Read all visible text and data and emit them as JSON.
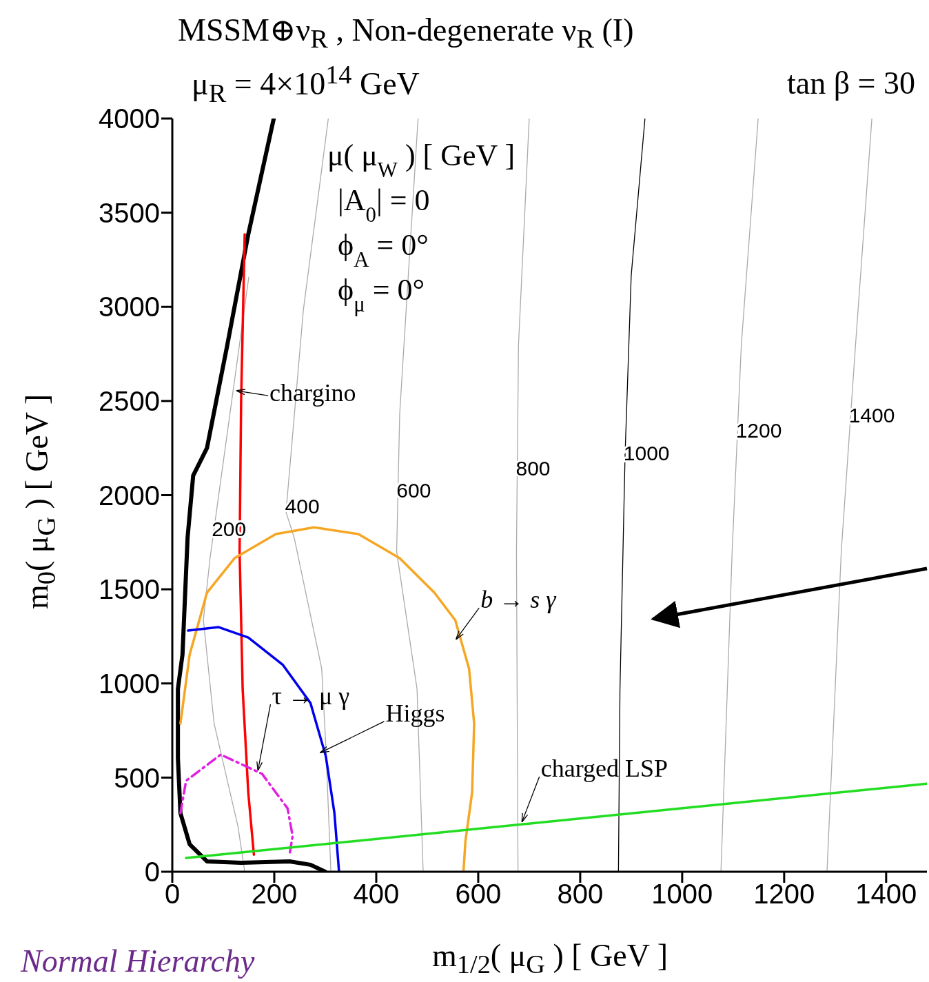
{
  "chart_data": {
    "type": "line",
    "title": "MSSM⊕ν$_{R}$ , Non-degenerate ν$_{R}$ (I)",
    "subtitle": "μ$_{R}$ = 4×10$^{14}$ GeV",
    "xlabel": "m$_{1/2}$( μ$_{G}$ ) [ GeV ]",
    "ylabel": "m$_{0}$( μ$_{G}$ ) [ GeV ]",
    "xlim": [
      0,
      1480
    ],
    "xticks": [
      0,
      200,
      400,
      600,
      800,
      1000,
      1200,
      1400
    ],
    "ylim": [
      0,
      4000
    ],
    "yticks": [
      0,
      500,
      1000,
      1500,
      2000,
      2500,
      3000,
      3500,
      4000
    ],
    "grid": false,
    "marker": "none",
    "line_style": "solid",
    "series": [
      {
        "name": "200",
        "color": "#aaaaaa",
        "x": [
          150,
          74,
          61,
          82,
          129,
          142
        ],
        "values": [
          3158,
          1665,
          1336,
          787,
          238,
          0
        ]
      },
      {
        "name": "400",
        "color": "#aaaaaa",
        "x": [
          306,
          257,
          223,
          239,
          293,
          301,
          311
        ],
        "values": [
          4000,
          2982,
          1910,
          1775,
          1079,
          677,
          0
        ]
      },
      {
        "name": "600",
        "color": "#aaaaaa",
        "x": [
          482,
          446,
          440,
          480,
          492
        ],
        "values": [
          4000,
          2433,
          1701,
          970,
          0
        ]
      },
      {
        "name": "800",
        "color": "#aaaaaa",
        "x": [
          700,
          679,
          675,
          678
        ],
        "values": [
          4000,
          2799,
          1701,
          0
        ]
      },
      {
        "name": "1000",
        "color": "#000000",
        "x": [
          927,
          900,
          888,
          878,
          875
        ],
        "values": [
          4000,
          3165,
          2214,
          970,
          0
        ]
      },
      {
        "name": "1200",
        "color": "#aaaaaa",
        "x": [
          1149,
          1116,
          1098,
          1076
        ],
        "values": [
          4000,
          2799,
          1701,
          0
        ]
      },
      {
        "name": "1400",
        "color": "#aaaaaa",
        "x": [
          1372,
          1340,
          1312,
          1284
        ],
        "values": [
          4000,
          2799,
          1701,
          0
        ]
      },
      {
        "color": "#000000",
        "x": [
          199,
          149,
          108,
          68,
          41,
          30,
          20,
          11,
          11,
          16,
          34,
          68,
          135,
          230,
          271,
          300
        ],
        "values": [
          4000,
          3385,
          2799,
          2250,
          2104,
          1775,
          1153,
          970,
          604,
          311,
          146,
          55,
          48,
          55,
          37,
          0
        ]
      },
      {
        "color": "#ff0000",
        "x": [
          142,
          135,
          132,
          138,
          149,
          160
        ],
        "values": [
          3385,
          2506,
          1701,
          970,
          421,
          91
        ]
      },
      {
        "color": "#f5a623",
        "x": [
          16,
          34,
          68,
          122,
          203,
          278,
          365,
          446,
          514,
          555,
          582,
          592,
          588,
          575,
          571
        ],
        "values": [
          787,
          1153,
          1482,
          1665,
          1793,
          1829,
          1793,
          1665,
          1482,
          1336,
          1079,
          787,
          421,
          165,
          0
        ]
      },
      {
        "color": "#0000ee",
        "x": [
          31,
          91,
          149,
          217,
          271,
          301,
          318,
          327
        ],
        "values": [
          1281,
          1299,
          1244,
          1098,
          896,
          615,
          311,
          0
        ]
      },
      {
        "color": "#e020e0",
        "line_style": "dashed",
        "x": [
          16,
          27,
          95,
          176,
          226,
          236,
          230
        ],
        "values": [
          311,
          483,
          622,
          520,
          337,
          190,
          91
        ]
      },
      {
        "color": "#22dd22",
        "x": [
          27,
          1480
        ],
        "values": [
          73,
          468
        ]
      }
    ],
    "annotations": [
      "tan β = 30",
      "μ( μ$_{W}$ ) [ GeV ]",
      "|A$_{0}$| = 0",
      "ϕ$_{A}$ = 0°",
      "ϕ$_{μ}$ = 0°",
      "Normal Hierarchy",
      {
        "text": "chargino",
        "x": 138,
        "y": 2525
      },
      {
        "text": "b → s γ",
        "x": 568,
        "y": 1207
      },
      {
        "text": "Higgs",
        "x": 302,
        "y": 604
      },
      {
        "text": "τ → μ γ",
        "x": 179,
        "y": 512
      },
      {
        "text": "charged LSP",
        "x": 697,
        "y": 238
      }
    ]
  }
}
